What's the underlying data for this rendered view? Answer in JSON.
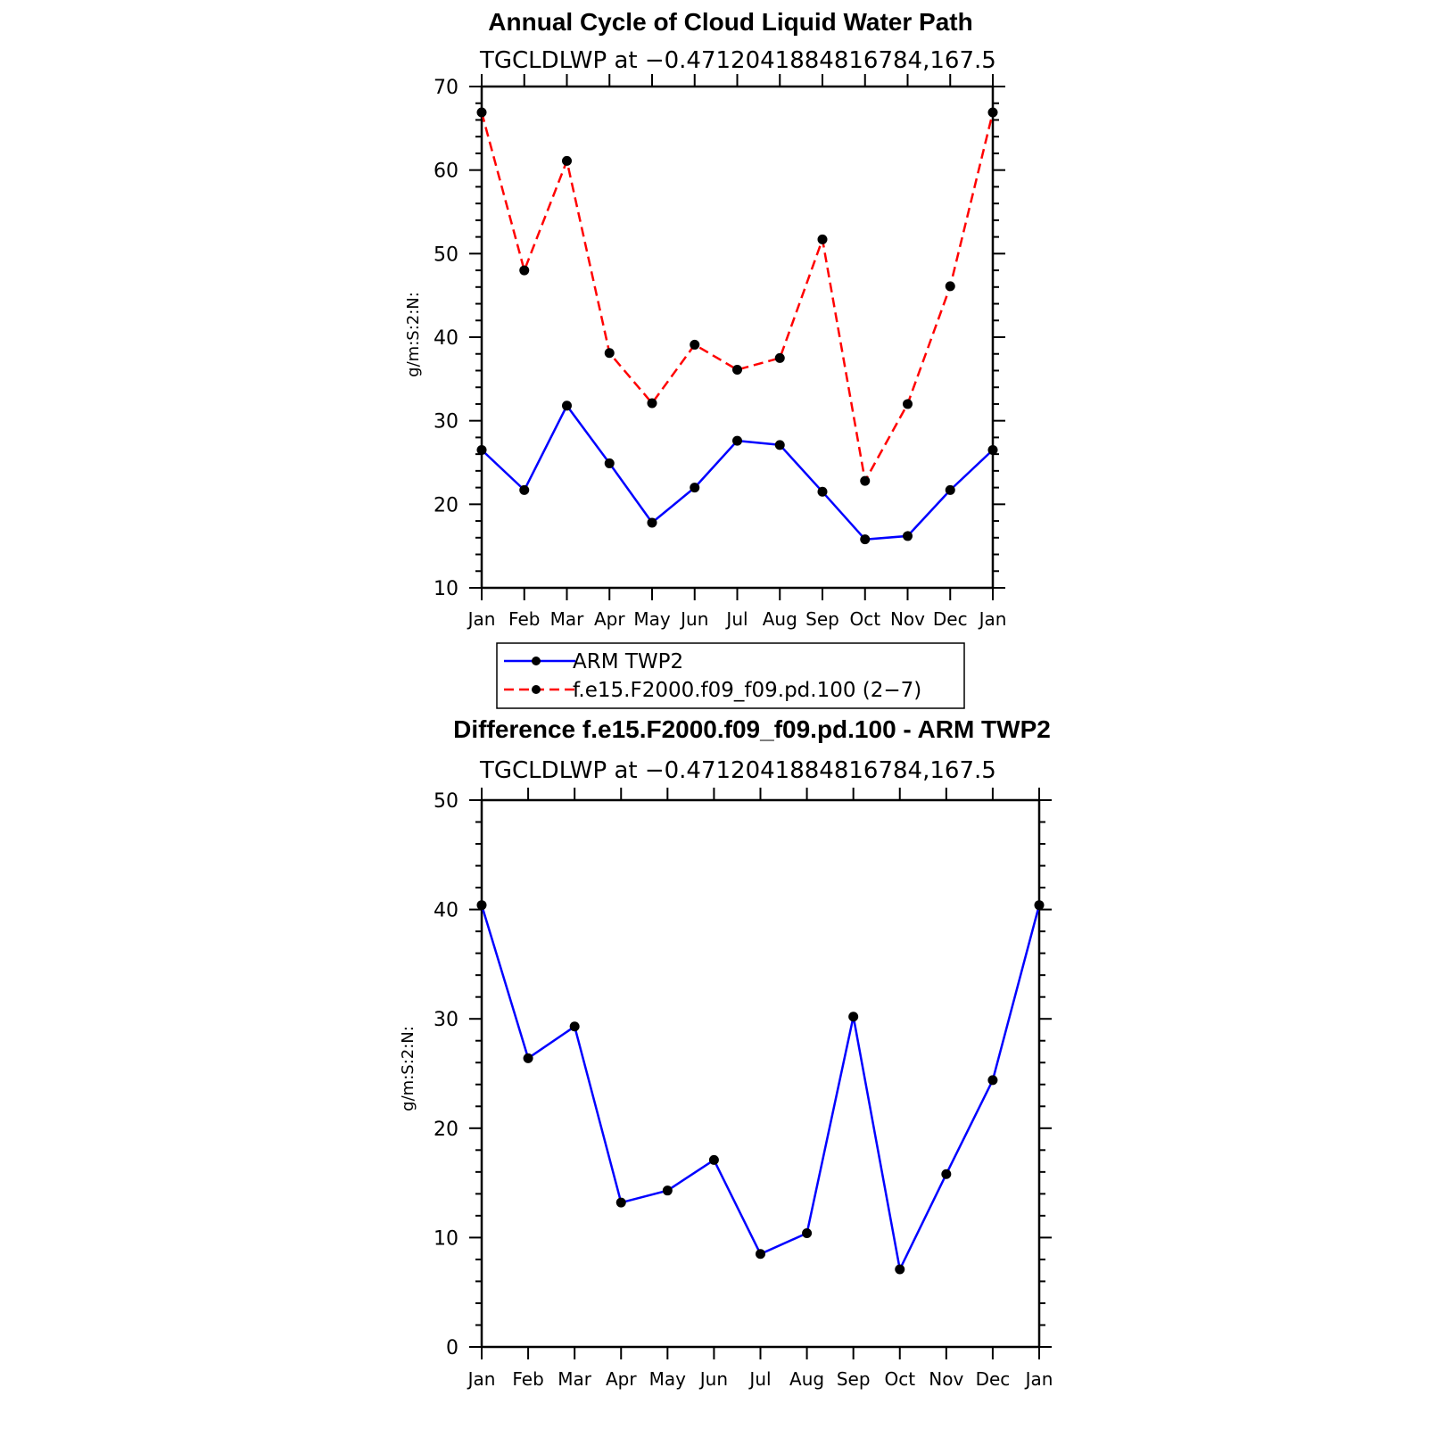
{
  "chart_data": [
    {
      "type": "line",
      "title": "Annual Cycle of Cloud Liquid Water Path",
      "subtitle": "TGCLDLWP at −0.4712041884816784,167.5",
      "ylabel": "g/m:S:2:N:",
      "xlabel": "",
      "ylim": [
        10,
        70
      ],
      "yticks": [
        "10",
        "20",
        "30",
        "40",
        "50",
        "60",
        "70"
      ],
      "categories": [
        "Jan",
        "Feb",
        "Mar",
        "Apr",
        "May",
        "Jun",
        "Jul",
        "Aug",
        "Sep",
        "Oct",
        "Nov",
        "Dec",
        "Jan"
      ],
      "series": [
        {
          "name": "ARM TWP2",
          "color": "#0000ff",
          "dash": "solid",
          "values": [
            26.5,
            21.7,
            31.8,
            24.9,
            17.8,
            22.0,
            27.6,
            27.1,
            21.5,
            15.8,
            16.2,
            21.7,
            26.5
          ]
        },
        {
          "name": "f.e15.F2000.f09_f09.pd.100 (2−7)",
          "color": "#ff0000",
          "dash": "dashed",
          "values": [
            66.9,
            48.0,
            61.1,
            38.1,
            32.1,
            39.1,
            36.1,
            37.5,
            51.7,
            22.8,
            32.0,
            46.1,
            66.9
          ]
        }
      ],
      "legend": "below"
    },
    {
      "type": "line",
      "title": "Difference f.e15.F2000.f09_f09.pd.100 - ARM TWP2",
      "subtitle": "TGCLDLWP at −0.4712041884816784,167.5",
      "ylabel": "g/m:S:2:N:",
      "xlabel": "",
      "ylim": [
        0,
        50
      ],
      "yticks": [
        "0",
        "10",
        "20",
        "30",
        "40",
        "50"
      ],
      "categories": [
        "Jan",
        "Feb",
        "Mar",
        "Apr",
        "May",
        "Jun",
        "Jul",
        "Aug",
        "Sep",
        "Oct",
        "Nov",
        "Dec",
        "Jan"
      ],
      "series": [
        {
          "color": "#0000ff",
          "dash": "solid",
          "values": [
            40.4,
            26.4,
            29.3,
            13.2,
            14.3,
            17.1,
            8.5,
            10.4,
            30.2,
            7.1,
            15.8,
            24.4,
            40.4
          ]
        }
      ]
    }
  ]
}
